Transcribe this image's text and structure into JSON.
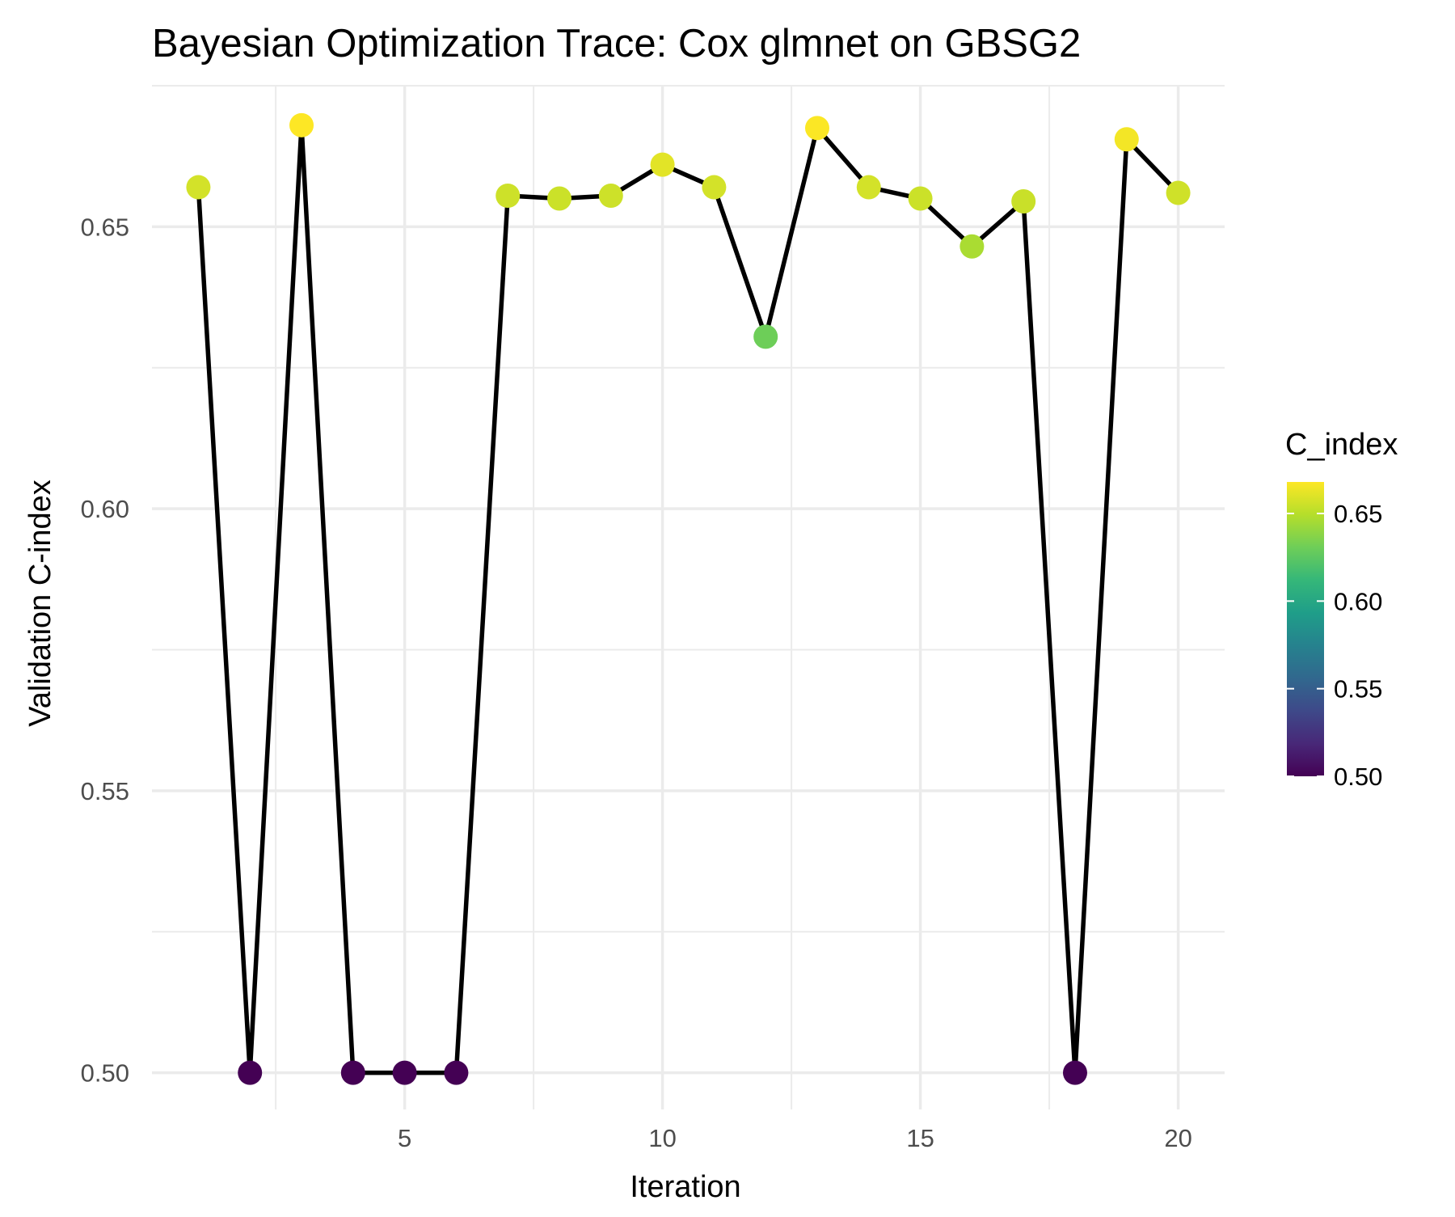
{
  "chart_data": {
    "type": "line",
    "title": "Bayesian Optimization Trace: Cox glmnet on GBSG2",
    "xlabel": "Iteration",
    "ylabel": "Validation C-index",
    "x": [
      1,
      2,
      3,
      4,
      5,
      6,
      7,
      8,
      9,
      10,
      11,
      12,
      13,
      14,
      15,
      16,
      17,
      18,
      19,
      20
    ],
    "series": [
      {
        "values": [
          0.657,
          0.5,
          0.668,
          0.5,
          0.5,
          0.5,
          0.6555,
          0.655,
          0.6555,
          0.661,
          0.657,
          0.6305,
          0.6675,
          0.657,
          0.655,
          0.6465,
          0.6545,
          0.5,
          0.6655,
          0.656
        ]
      }
    ],
    "xlim": [
      0.1,
      20.9
    ],
    "ylim": [
      0.4935,
      0.675
    ],
    "x_ticks": [
      "5",
      "10",
      "15",
      "20"
    ],
    "x_tick_values": [
      5,
      10,
      15,
      20
    ],
    "y_ticks": [
      "0.50",
      "0.55",
      "0.60",
      "0.65"
    ],
    "y_tick_values": [
      0.5,
      0.55,
      0.6,
      0.65
    ],
    "grid": true,
    "line_color": "#000000",
    "legend": {
      "title": "C_index",
      "position": "right",
      "type": "colorbar",
      "range": [
        0.5,
        0.668
      ],
      "ticks": [
        "0.50",
        "0.55",
        "0.60",
        "0.65"
      ],
      "tick_values": [
        0.5,
        0.55,
        0.6,
        0.65
      ],
      "colormap": "viridis",
      "colors": [
        "#440154",
        "#482878",
        "#3e4989",
        "#31688e",
        "#26828e",
        "#1f9e89",
        "#35b779",
        "#6ece58",
        "#b5de2b",
        "#fde725"
      ]
    }
  }
}
